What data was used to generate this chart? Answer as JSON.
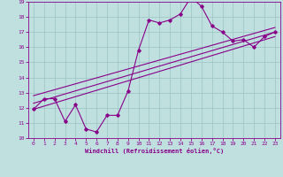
{
  "title": "",
  "xlabel": "Windchill (Refroidissement éolien,°C)",
  "ylabel": "",
  "bg_color": "#c0e0e0",
  "line_color": "#880088",
  "grid_color": "#a0c8c8",
  "xlim": [
    -0.5,
    23.5
  ],
  "ylim": [
    10,
    19
  ],
  "xticks": [
    0,
    1,
    2,
    3,
    4,
    5,
    6,
    7,
    8,
    9,
    10,
    11,
    12,
    13,
    14,
    15,
    16,
    17,
    18,
    19,
    20,
    21,
    22,
    23
  ],
  "yticks": [
    10,
    11,
    12,
    13,
    14,
    15,
    16,
    17,
    18,
    19
  ],
  "zigzag_x": [
    0,
    1,
    2,
    3,
    4,
    5,
    6,
    7,
    8,
    9,
    10,
    11,
    12,
    13,
    14,
    15,
    16,
    17,
    18,
    19,
    20,
    21,
    22,
    23
  ],
  "zigzag_y": [
    11.9,
    12.6,
    12.6,
    11.1,
    12.2,
    10.6,
    10.4,
    11.5,
    11.5,
    13.1,
    15.8,
    17.8,
    17.6,
    17.8,
    18.2,
    19.3,
    18.7,
    17.4,
    17.0,
    16.4,
    16.5,
    16.0,
    16.7,
    17.0
  ],
  "line1_x": [
    0,
    23
  ],
  "line1_y": [
    11.9,
    16.7
  ],
  "line2_x": [
    0,
    23
  ],
  "line2_y": [
    12.3,
    17.0
  ],
  "line3_x": [
    0,
    23
  ],
  "line3_y": [
    12.8,
    17.3
  ]
}
